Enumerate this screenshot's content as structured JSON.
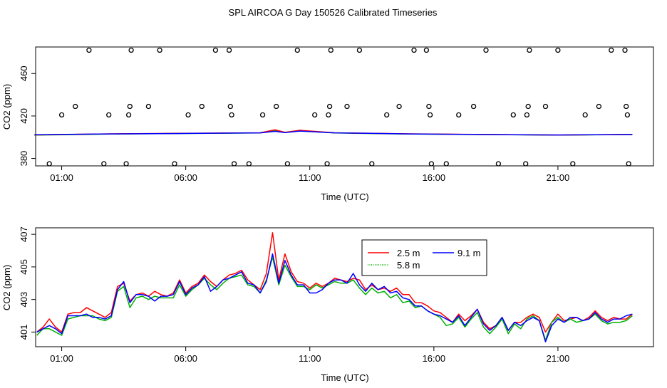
{
  "page_title": "SPL AIRCOA G  Day 150526  Calibrated Timeseries",
  "colors": {
    "red": "#ff0000",
    "green": "#00b000",
    "blue": "#0000ff",
    "black": "#000000"
  },
  "chart_data": [
    {
      "type": "scatter",
      "title": "",
      "xlabel": "Time (UTC)",
      "ylabel": "CO2 (ppm)",
      "x_unit": "hours UTC",
      "x_ticks": [
        1,
        6,
        11,
        16,
        21
      ],
      "x_tick_labels": [
        "01:00",
        "06:00",
        "11:00",
        "16:00",
        "21:00"
      ],
      "y_ticks": [
        380,
        420,
        460
      ],
      "y_tick_labels": [
        "380",
        "420",
        "460"
      ],
      "xlim": [
        -0.05,
        24.85
      ],
      "ylim": [
        373,
        485
      ],
      "grid": false,
      "points": [
        [
          0.5,
          375
        ],
        [
          1.0,
          421
        ],
        [
          1.55,
          429
        ],
        [
          2.1,
          482
        ],
        [
          2.7,
          375
        ],
        [
          2.9,
          421
        ],
        [
          3.6,
          375
        ],
        [
          3.7,
          421
        ],
        [
          3.75,
          429
        ],
        [
          3.8,
          482
        ],
        [
          4.5,
          429
        ],
        [
          4.95,
          482
        ],
        [
          5.55,
          375
        ],
        [
          6.1,
          421
        ],
        [
          6.65,
          429
        ],
        [
          7.2,
          482
        ],
        [
          7.75,
          482
        ],
        [
          7.8,
          429
        ],
        [
          7.85,
          421
        ],
        [
          7.95,
          375
        ],
        [
          8.55,
          375
        ],
        [
          9.1,
          421
        ],
        [
          9.65,
          429
        ],
        [
          10.1,
          375
        ],
        [
          10.5,
          482
        ],
        [
          11.2,
          421
        ],
        [
          11.75,
          421
        ],
        [
          11.8,
          429
        ],
        [
          11.85,
          482
        ],
        [
          11.7,
          375
        ],
        [
          12.5,
          429
        ],
        [
          13.0,
          482
        ],
        [
          13.5,
          375
        ],
        [
          14.1,
          421
        ],
        [
          14.6,
          429
        ],
        [
          15.2,
          482
        ],
        [
          15.7,
          482
        ],
        [
          15.8,
          429
        ],
        [
          15.85,
          421
        ],
        [
          15.9,
          375
        ],
        [
          16.5,
          375
        ],
        [
          17.0,
          421
        ],
        [
          17.6,
          429
        ],
        [
          18.1,
          482
        ],
        [
          18.6,
          375
        ],
        [
          19.2,
          421
        ],
        [
          19.7,
          375
        ],
        [
          19.75,
          421
        ],
        [
          19.8,
          429
        ],
        [
          19.85,
          482
        ],
        [
          20.5,
          429
        ],
        [
          21.0,
          482
        ],
        [
          21.6,
          375
        ],
        [
          22.1,
          421
        ],
        [
          22.65,
          429
        ],
        [
          23.15,
          482
        ],
        [
          23.7,
          482
        ],
        [
          23.75,
          429
        ],
        [
          23.8,
          421
        ],
        [
          23.85,
          375
        ]
      ],
      "series": [
        {
          "color": "#00b000",
          "values": [
            [
              -0.1,
              402
            ],
            [
              3,
              403
            ],
            [
              6,
              403.5
            ],
            [
              9,
              404
            ],
            [
              9.6,
              406
            ],
            [
              10,
              404.5
            ],
            [
              10.6,
              406
            ],
            [
              12,
              404
            ],
            [
              15,
              403
            ],
            [
              18,
              402.5
            ],
            [
              21,
              402
            ],
            [
              24,
              402.5
            ]
          ]
        },
        {
          "color": "#ff0000",
          "values": [
            [
              -0.1,
              402.2
            ],
            [
              3,
              403.2
            ],
            [
              6,
              403.7
            ],
            [
              9,
              404.2
            ],
            [
              9.6,
              407
            ],
            [
              10,
              404.6
            ],
            [
              10.6,
              406.5
            ],
            [
              12,
              404.2
            ],
            [
              15,
              403.2
            ],
            [
              18,
              402.6
            ],
            [
              21,
              402.1
            ],
            [
              24,
              402.6
            ]
          ]
        },
        {
          "color": "#0000ff",
          "values": [
            [
              -0.1,
              402.3
            ],
            [
              3,
              403.1
            ],
            [
              6,
              403.6
            ],
            [
              9,
              404.1
            ],
            [
              9.6,
              405.5
            ],
            [
              10,
              404.4
            ],
            [
              10.6,
              405.8
            ],
            [
              12,
              404.1
            ],
            [
              15,
              403.1
            ],
            [
              18,
              402.5
            ],
            [
              21,
              402.1
            ],
            [
              24,
              402.6
            ]
          ]
        }
      ]
    },
    {
      "type": "line",
      "title": "",
      "xlabel": "Time (UTC)",
      "ylabel": "CO2 (ppm)",
      "x_unit": "hours UTC",
      "x_ticks": [
        1,
        6,
        11,
        16,
        21
      ],
      "x_tick_labels": [
        "01:00",
        "06:00",
        "11:00",
        "16:00",
        "21:00"
      ],
      "y_ticks": [
        401,
        403,
        405,
        407
      ],
      "y_tick_labels": [
        "401",
        "403",
        "405",
        "407"
      ],
      "xlim": [
        -0.05,
        24.85
      ],
      "ylim": [
        400.1,
        407.4
      ],
      "grid": false,
      "legend_position": "top-center",
      "series": [
        {
          "name": "2.5 m",
          "color": "#ff0000",
          "x": [
            0,
            0.25,
            0.5,
            0.75,
            1.0,
            1.25,
            1.5,
            1.75,
            2.0,
            2.25,
            2.5,
            2.75,
            3.0,
            3.25,
            3.5,
            3.75,
            4.0,
            4.25,
            4.5,
            4.75,
            5.0,
            5.25,
            5.5,
            5.75,
            6.0,
            6.25,
            6.5,
            6.75,
            7.0,
            7.25,
            7.5,
            7.75,
            8.0,
            8.25,
            8.5,
            8.75,
            9.0,
            9.25,
            9.5,
            9.75,
            10.0,
            10.25,
            10.5,
            10.75,
            11.0,
            11.25,
            11.5,
            11.75,
            12.0,
            12.25,
            12.5,
            12.75,
            13.0,
            13.25,
            13.5,
            13.75,
            14.0,
            14.25,
            14.5,
            14.75,
            15.0,
            15.25,
            15.5,
            15.75,
            16.0,
            16.25,
            16.5,
            16.75,
            17.0,
            17.25,
            17.5,
            17.75,
            18.0,
            18.25,
            18.5,
            18.75,
            19.0,
            19.25,
            19.5,
            19.75,
            20.0,
            20.25,
            20.5,
            20.75,
            21.0,
            21.25,
            21.5,
            21.75,
            22.0,
            22.25,
            22.5,
            22.75,
            23.0,
            23.25,
            23.5,
            23.75,
            24.0
          ],
          "values": [
            401.0,
            401.3,
            401.8,
            401.3,
            401.0,
            402.1,
            402.2,
            402.2,
            402.5,
            402.3,
            402.1,
            401.9,
            402.2,
            403.8,
            404.0,
            402.9,
            403.3,
            403.4,
            403.2,
            403.5,
            403.3,
            403.2,
            403.4,
            404.2,
            403.4,
            403.8,
            404.0,
            404.5,
            404.1,
            403.8,
            404.2,
            404.5,
            404.6,
            404.8,
            404.2,
            403.9,
            403.6,
            404.6,
            407.1,
            404.2,
            405.8,
            404.7,
            404.1,
            404.0,
            403.7,
            404.0,
            403.8,
            404.0,
            404.3,
            404.2,
            404.1,
            404.3,
            404.2,
            403.6,
            403.9,
            403.6,
            403.7,
            403.5,
            403.7,
            403.3,
            403.3,
            402.8,
            402.8,
            402.6,
            402.3,
            402.2,
            401.9,
            401.6,
            402.1,
            401.7,
            402.0,
            402.4,
            401.6,
            401.2,
            401.4,
            401.9,
            401.1,
            401.6,
            401.6,
            401.9,
            402.1,
            401.9,
            401.0,
            401.6,
            402.1,
            401.7,
            401.8,
            401.9,
            401.7,
            401.9,
            402.3,
            401.9,
            401.7,
            401.9,
            401.8,
            401.8,
            402.1
          ]
        },
        {
          "name": "5.8 m",
          "color": "#00b000",
          "x": [
            0,
            0.25,
            0.5,
            0.75,
            1.0,
            1.25,
            1.5,
            1.75,
            2.0,
            2.25,
            2.5,
            2.75,
            3.0,
            3.25,
            3.5,
            3.75,
            4.0,
            4.25,
            4.5,
            4.75,
            5.0,
            5.25,
            5.5,
            5.75,
            6.0,
            6.25,
            6.5,
            6.75,
            7.0,
            7.25,
            7.5,
            7.75,
            8.0,
            8.25,
            8.5,
            8.75,
            9.0,
            9.25,
            9.5,
            9.75,
            10.0,
            10.25,
            10.5,
            10.75,
            11.0,
            11.25,
            11.5,
            11.75,
            12.0,
            12.25,
            12.5,
            12.75,
            13.0,
            13.25,
            13.5,
            13.75,
            14.0,
            14.25,
            14.5,
            14.75,
            15.0,
            15.25,
            15.5,
            15.75,
            16.0,
            16.25,
            16.5,
            16.75,
            17.0,
            17.25,
            17.5,
            17.75,
            18.0,
            18.25,
            18.5,
            18.75,
            19.0,
            19.25,
            19.5,
            19.75,
            20.0,
            20.25,
            20.5,
            20.75,
            21.0,
            21.25,
            21.5,
            21.75,
            22.0,
            22.25,
            22.5,
            22.75,
            23.0,
            23.25,
            23.5,
            23.75,
            24.0
          ],
          "values": [
            400.8,
            401.2,
            401.2,
            401.0,
            400.8,
            401.8,
            401.9,
            402.0,
            402.0,
            402.0,
            401.8,
            401.7,
            401.9,
            403.5,
            403.8,
            402.5,
            403.1,
            403.2,
            403.0,
            403.2,
            403.1,
            403.1,
            403.1,
            403.9,
            403.2,
            403.6,
            403.9,
            404.3,
            403.9,
            403.6,
            404.0,
            404.3,
            404.4,
            404.5,
            403.9,
            403.8,
            403.4,
            404.2,
            405.6,
            403.9,
            405.1,
            404.4,
            403.8,
            403.8,
            403.6,
            403.9,
            403.7,
            403.9,
            404.1,
            404.0,
            404.0,
            404.2,
            403.7,
            403.3,
            403.7,
            403.4,
            403.5,
            403.1,
            403.3,
            402.8,
            402.9,
            402.5,
            402.6,
            402.3,
            402.1,
            401.9,
            401.4,
            401.5,
            401.9,
            401.3,
            401.8,
            402.2,
            401.3,
            400.9,
            401.3,
            401.8,
            400.9,
            401.5,
            401.2,
            401.8,
            402.0,
            401.7,
            400.5,
            401.6,
            401.9,
            401.6,
            401.8,
            401.6,
            401.7,
            401.8,
            402.1,
            401.7,
            401.5,
            401.6,
            401.6,
            401.7,
            402.0
          ]
        },
        {
          "name": "9.1 m",
          "color": "#0000ff",
          "x": [
            0,
            0.25,
            0.5,
            0.75,
            1.0,
            1.25,
            1.5,
            1.75,
            2.0,
            2.25,
            2.5,
            2.75,
            3.0,
            3.25,
            3.5,
            3.75,
            4.0,
            4.25,
            4.5,
            4.75,
            5.0,
            5.25,
            5.5,
            5.75,
            6.0,
            6.25,
            6.5,
            6.75,
            7.0,
            7.25,
            7.5,
            7.75,
            8.0,
            8.25,
            8.5,
            8.75,
            9.0,
            9.25,
            9.5,
            9.75,
            10.0,
            10.25,
            10.5,
            10.75,
            11.0,
            11.25,
            11.5,
            11.75,
            12.0,
            12.25,
            12.5,
            12.75,
            13.0,
            13.25,
            13.5,
            13.75,
            14.0,
            14.25,
            14.5,
            14.75,
            15.0,
            15.25,
            15.5,
            15.75,
            16.0,
            16.25,
            16.5,
            16.75,
            17.0,
            17.25,
            17.5,
            17.75,
            18.0,
            18.25,
            18.5,
            18.75,
            19.0,
            19.25,
            19.5,
            19.75,
            20.0,
            20.25,
            20.5,
            20.75,
            21.0,
            21.25,
            21.5,
            21.75,
            22.0,
            22.25,
            22.5,
            22.75,
            23.0,
            23.25,
            23.5,
            23.75,
            24.0
          ],
          "values": [
            401.0,
            401.2,
            401.4,
            401.2,
            400.9,
            402.0,
            402.0,
            402.0,
            402.1,
            401.9,
            401.9,
            401.8,
            402.0,
            403.6,
            404.1,
            402.8,
            403.3,
            403.3,
            403.2,
            402.9,
            403.2,
            403.2,
            403.3,
            404.1,
            403.3,
            403.7,
            403.9,
            404.4,
            403.5,
            403.8,
            404.2,
            404.3,
            404.5,
            404.7,
            404.0,
            403.9,
            403.4,
            404.1,
            405.8,
            404.0,
            405.4,
            404.5,
            403.9,
            403.9,
            403.4,
            403.4,
            403.6,
            404.0,
            404.2,
            404.2,
            404.0,
            404.6,
            403.9,
            403.5,
            404.0,
            403.6,
            403.8,
            403.4,
            403.5,
            403.1,
            403.0,
            402.6,
            402.6,
            402.3,
            402.1,
            402.0,
            401.8,
            401.6,
            402.0,
            401.4,
            401.9,
            402.4,
            401.5,
            401.1,
            401.4,
            401.9,
            401.1,
            401.6,
            401.4,
            401.7,
            401.9,
            401.7,
            400.4,
            401.4,
            401.8,
            401.6,
            401.9,
            401.9,
            401.7,
            401.8,
            402.2,
            401.8,
            401.6,
            401.8,
            401.8,
            402.0,
            402.1
          ]
        }
      ]
    }
  ]
}
